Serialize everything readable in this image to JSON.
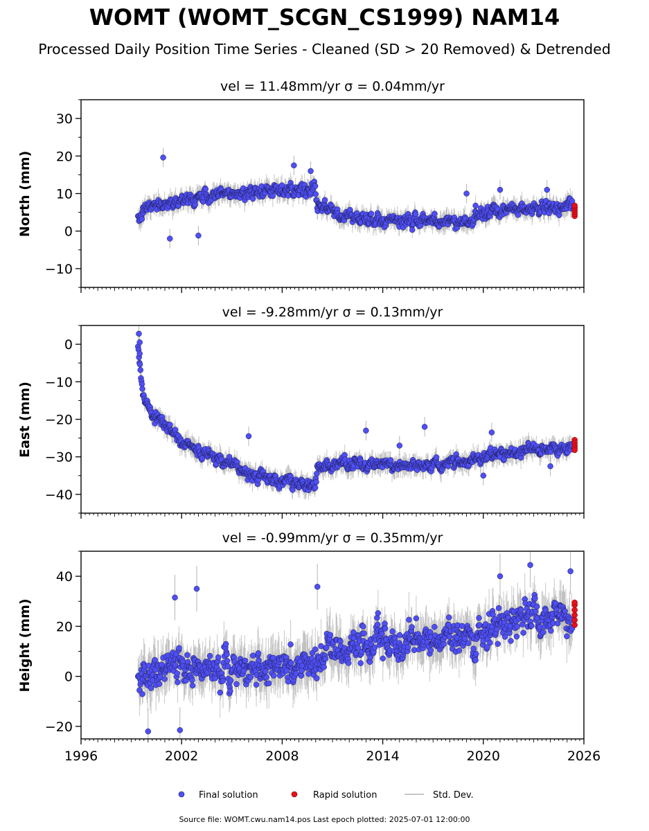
{
  "title": "WOMT (WOMT_SCGN_CS1999) NAM14",
  "subtitle": "Processed Daily Position Time Series - Cleaned (SD > 20 Removed) & Detrended",
  "footer": "Source file: WOMT.cwu.nam14.pos  Last epoch plotted: 2025-07-01 12:00:00",
  "legend": {
    "final": "Final solution",
    "rapid": "Rapid solution",
    "stddev": "Std. Dev."
  },
  "colors": {
    "final": "#4f4ff5",
    "final_edge": "#1a1a4a",
    "rapid": "#e8101a",
    "stddev": "#b4b4b4"
  },
  "chart_data": [
    {
      "type": "scatter",
      "component": "north",
      "title": "vel = 11.48mm/yr   σ = 0.04mm/yr",
      "ylabel": "North (mm)",
      "xlim": [
        1996,
        2026
      ],
      "ylim": [
        -15,
        35
      ],
      "yticks": [
        -10,
        0,
        10,
        20,
        30
      ],
      "ytick_labels": [
        "−10",
        "0",
        "10",
        "20",
        "30"
      ],
      "trend": [
        [
          1999.4,
          2.0
        ],
        [
          1999.7,
          5.0
        ],
        [
          2000.0,
          6.5
        ],
        [
          2001.0,
          7.5
        ],
        [
          2002.0,
          8.3
        ],
        [
          2004.0,
          9.5
        ],
        [
          2006.0,
          10.5
        ],
        [
          2008.0,
          11.0
        ],
        [
          2009.9,
          11.5
        ],
        [
          2010.1,
          8.0
        ],
        [
          2011.0,
          5.0
        ],
        [
          2012.0,
          3.5
        ],
        [
          2014.0,
          3.0
        ],
        [
          2016.0,
          2.5
        ],
        [
          2018.0,
          2.5
        ],
        [
          2019.4,
          2.5
        ],
        [
          2019.6,
          4.5
        ],
        [
          2021.0,
          5.0
        ],
        [
          2022.0,
          6.0
        ],
        [
          2023.5,
          6.0
        ],
        [
          2025.3,
          6.0
        ]
      ],
      "noise": 1.6,
      "sd": 2.0,
      "outliers": [
        [
          2000.9,
          19.6
        ],
        [
          2003.0,
          -1.2
        ],
        [
          2001.3,
          -2.0
        ],
        [
          2008.7,
          17.5
        ],
        [
          2009.7,
          16.0
        ],
        [
          2019.0,
          10.0
        ],
        [
          2021.0,
          11.0
        ],
        [
          2023.8,
          11.0
        ]
      ],
      "rapid": {
        "x": 2025.45,
        "y": [
          4.0,
          4.6,
          5.2,
          5.8,
          6.3,
          6.8
        ]
      }
    },
    {
      "type": "scatter",
      "component": "east",
      "title": "vel = -9.28mm/yr   σ = 0.13mm/yr",
      "ylabel": "East (mm)",
      "xlim": [
        1996,
        2026
      ],
      "ylim": [
        -45,
        5
      ],
      "yticks": [
        -40,
        -30,
        -20,
        -10,
        0
      ],
      "ytick_labels": [
        "−40",
        "−30",
        "−20",
        "−10",
        "0"
      ],
      "trend": [
        [
          1999.4,
          0.0
        ],
        [
          1999.55,
          -8.0
        ],
        [
          1999.7,
          -13.0
        ],
        [
          2000.0,
          -17.0
        ],
        [
          2000.5,
          -20.0
        ],
        [
          2001.0,
          -22.0
        ],
        [
          2002.0,
          -25.5
        ],
        [
          2003.0,
          -28.5
        ],
        [
          2004.0,
          -30.5
        ],
        [
          2005.0,
          -32.0
        ],
        [
          2006.0,
          -34.0
        ],
        [
          2007.0,
          -35.5
        ],
        [
          2008.0,
          -36.5
        ],
        [
          2009.0,
          -37.0
        ],
        [
          2009.95,
          -38.0
        ],
        [
          2010.1,
          -32.5
        ],
        [
          2012.0,
          -32.0
        ],
        [
          2014.0,
          -32.0
        ],
        [
          2016.0,
          -32.5
        ],
        [
          2018.0,
          -32.0
        ],
        [
          2019.0,
          -31.5
        ],
        [
          2020.0,
          -30.0
        ],
        [
          2021.0,
          -29.0
        ],
        [
          2022.0,
          -28.5
        ],
        [
          2023.0,
          -28.0
        ],
        [
          2024.0,
          -27.5
        ],
        [
          2025.3,
          -27.5
        ]
      ],
      "noise": 1.5,
      "sd": 2.0,
      "outliers": [
        [
          1999.45,
          2.8
        ],
        [
          1999.5,
          -2.5
        ],
        [
          1999.5,
          0.5
        ],
        [
          2006.0,
          -24.5
        ],
        [
          2013.0,
          -23.0
        ],
        [
          2015.0,
          -27.0
        ],
        [
          2016.5,
          -22.0
        ],
        [
          2020.5,
          -23.5
        ],
        [
          2024.0,
          -32.5
        ],
        [
          2020.0,
          -35.0
        ]
      ],
      "rapid": {
        "x": 2025.45,
        "y": [
          -25.5,
          -26.3,
          -27.0,
          -27.6,
          -28.2
        ]
      }
    },
    {
      "type": "scatter",
      "component": "height",
      "title": "vel = -0.99mm/yr   σ = 0.35mm/yr",
      "ylabel": "Height (mm)",
      "xlim": [
        1996,
        2026
      ],
      "ylim": [
        -25,
        50
      ],
      "yticks": [
        -20,
        0,
        20,
        40
      ],
      "ytick_labels": [
        "−20",
        "0",
        "20",
        "40"
      ],
      "xticks": [
        1996,
        2002,
        2008,
        2014,
        2020,
        2026
      ],
      "trend": [
        [
          1999.4,
          0.0
        ],
        [
          2001.0,
          2.0
        ],
        [
          2003.0,
          3.0
        ],
        [
          2005.0,
          3.0
        ],
        [
          2007.0,
          4.0
        ],
        [
          2009.0,
          4.0
        ],
        [
          2010.0,
          6.0
        ],
        [
          2011.0,
          10.0
        ],
        [
          2013.0,
          12.0
        ],
        [
          2015.0,
          13.0
        ],
        [
          2017.0,
          15.0
        ],
        [
          2019.0,
          16.0
        ],
        [
          2021.0,
          20.0
        ],
        [
          2023.0,
          23.0
        ],
        [
          2025.3,
          22.0
        ]
      ],
      "noise": 6.5,
      "sd": 7.0,
      "outliers": [
        [
          2000.0,
          -22.0
        ],
        [
          2001.6,
          31.5
        ],
        [
          2002.9,
          35.0
        ],
        [
          2010.1,
          35.8
        ],
        [
          2021.0,
          40.0
        ],
        [
          2022.8,
          44.5
        ],
        [
          2025.2,
          42.0
        ],
        [
          2001.9,
          -21.5
        ]
      ],
      "rapid": {
        "x": 2025.45,
        "y": [
          20.5,
          22.5,
          24.5,
          26.5,
          28.5,
          29.5
        ]
      }
    }
  ]
}
